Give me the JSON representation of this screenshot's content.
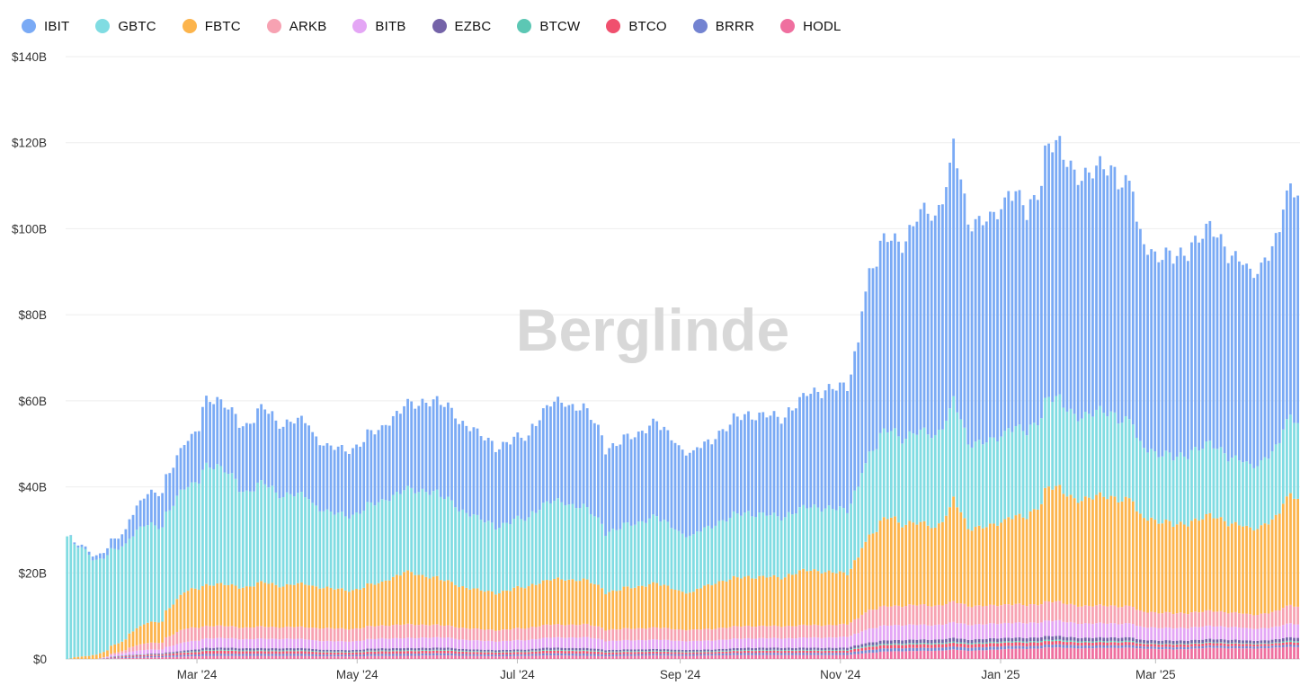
{
  "watermark": "Berglinde",
  "legend": [
    {
      "name": "IBIT",
      "color": "#7aaaf5"
    },
    {
      "name": "GBTC",
      "color": "#80dce2"
    },
    {
      "name": "FBTC",
      "color": "#fcb44c"
    },
    {
      "name": "ARKB",
      "color": "#f7a2b2"
    },
    {
      "name": "BITB",
      "color": "#e4a6f5"
    },
    {
      "name": "EZBC",
      "color": "#7463a8"
    },
    {
      "name": "BTCW",
      "color": "#5cc7b4"
    },
    {
      "name": "BTCO",
      "color": "#f0506e"
    },
    {
      "name": "BRRR",
      "color": "#7383d1"
    },
    {
      "name": "HODL",
      "color": "#ef6f9f"
    }
  ],
  "chart_data": {
    "type": "bar",
    "stacked": true,
    "grid": true,
    "legend_position": "top-left",
    "y_ticks": [
      "$0",
      "$20B",
      "$40B",
      "$60B",
      "$80B",
      "$100B",
      "$120B",
      "$140B"
    ],
    "ylim": [
      0,
      140
    ],
    "y_unit": "B",
    "x_ticks": [
      "Mar '24",
      "May '24",
      "Jul '24",
      "Sep '24",
      "Nov '24",
      "Jan '25",
      "Mar '25"
    ],
    "x_tick_dates": [
      "2024-03-01",
      "2024-05-01",
      "2024-07-01",
      "2024-09-01",
      "2024-11-01",
      "2025-01-01",
      "2025-03-01"
    ],
    "date_range": [
      "2024-01-11",
      "2025-04-25"
    ],
    "weekday_bars": true,
    "series_order": [
      "HODL",
      "BRRR",
      "BTCO",
      "BTCW",
      "EZBC",
      "BITB",
      "ARKB",
      "FBTC",
      "GBTC",
      "IBIT"
    ],
    "anchors": {
      "dates": [
        "2024-01-11",
        "2024-01-16",
        "2024-01-23",
        "2024-02-01",
        "2024-02-09",
        "2024-02-16",
        "2024-02-23",
        "2024-02-28",
        "2024-03-05",
        "2024-03-13",
        "2024-03-20",
        "2024-03-27",
        "2024-04-03",
        "2024-04-12",
        "2024-04-19",
        "2024-04-30",
        "2024-05-10",
        "2024-05-20",
        "2024-05-28",
        "2024-06-05",
        "2024-06-14",
        "2024-06-24",
        "2024-07-05",
        "2024-07-12",
        "2024-07-19",
        "2024-07-29",
        "2024-08-05",
        "2024-08-12",
        "2024-08-23",
        "2024-09-06",
        "2024-09-13",
        "2024-09-27",
        "2024-10-10",
        "2024-10-18",
        "2024-10-29",
        "2024-11-05",
        "2024-11-07",
        "2024-11-13",
        "2024-11-21",
        "2024-11-26",
        "2024-12-05",
        "2024-12-09",
        "2024-12-16",
        "2024-12-20",
        "2024-12-30",
        "2025-01-06",
        "2025-01-13",
        "2025-01-21",
        "2025-01-30",
        "2025-02-07",
        "2025-02-14",
        "2025-02-21",
        "2025-02-25",
        "2025-02-28",
        "2025-03-10",
        "2025-03-17",
        "2025-03-24",
        "2025-03-31",
        "2025-04-08",
        "2025-04-17",
        "2025-04-23",
        "2025-04-25"
      ],
      "total": [
        28.5,
        26.5,
        24.0,
        28.0,
        37.0,
        37.5,
        47.0,
        50.0,
        59.5,
        57.0,
        53.0,
        57.5,
        54.0,
        55.5,
        49.0,
        49.0,
        55.0,
        60.0,
        61.5,
        59.5,
        54.5,
        51.0,
        53.5,
        59.0,
        61.0,
        58.0,
        50.0,
        52.0,
        56.0,
        48.0,
        52.0,
        58.0,
        56.5,
        61.0,
        64.0,
        63.0,
        70.5,
        89.0,
        98.0,
        96.0,
        104.0,
        102.0,
        118.0,
        102.0,
        100.0,
        110.0,
        102.0,
        121.0,
        114.0,
        114.0,
        115.0,
        110.5,
        98.0,
        96.0,
        93.0,
        97.5,
        100.0,
        95.0,
        89.5,
        97.0,
        109.0,
        110.0
      ],
      "IBIT": [
        0.0,
        0.5,
        1.0,
        2.8,
        6.5,
        8.0,
        9.5,
        11.0,
        15.5,
        15.0,
        15.5,
        17.5,
        16.5,
        17.5,
        15.0,
        15.5,
        17.0,
        19.5,
        21.0,
        21.5,
        20.0,
        18.5,
        19.0,
        22.0,
        23.5,
        22.5,
        19.5,
        20.0,
        22.0,
        19.0,
        20.0,
        23.0,
        23.0,
        25.5,
        28.0,
        28.5,
        32.0,
        42.0,
        45.0,
        45.5,
        52.0,
        51.0,
        59.0,
        52.0,
        51.0,
        56.0,
        50.0,
        59.5,
        56.5,
        56.0,
        57.0,
        54.5,
        48.0,
        46.5,
        46.0,
        48.5,
        50.0,
        47.5,
        44.5,
        48.0,
        53.0,
        54.0
      ],
      "GBTC": [
        28.5,
        25.5,
        22.0,
        22.0,
        23.0,
        22.0,
        24.0,
        24.0,
        28.0,
        26.0,
        22.0,
        23.0,
        21.0,
        20.5,
        17.5,
        17.5,
        19.0,
        19.0,
        20.0,
        19.0,
        17.0,
        15.5,
        16.0,
        18.0,
        18.0,
        16.5,
        14.0,
        14.5,
        15.5,
        13.0,
        13.5,
        15.0,
        14.0,
        14.5,
        15.0,
        14.5,
        16.0,
        19.0,
        20.5,
        20.0,
        21.5,
        21.5,
        23.0,
        20.0,
        19.5,
        21.0,
        19.5,
        21.0,
        19.5,
        19.5,
        19.5,
        18.0,
        16.5,
        16.0,
        15.5,
        16.5,
        16.5,
        15.5,
        14.5,
        16.0,
        18.0,
        18.0
      ],
      "FBTC": [
        0.0,
        0.5,
        1.0,
        2.2,
        4.5,
        4.9,
        8.0,
        8.9,
        9.6,
        9.6,
        9.4,
        10.3,
        9.6,
        10.1,
        9.3,
        9.0,
        10.0,
        12.2,
        11.3,
        10.3,
        9.2,
        8.7,
        9.7,
        10.2,
        10.7,
        10.1,
        8.7,
        9.4,
        10.3,
        8.5,
        10.5,
        11.5,
        11.3,
        12.7,
        12.5,
        11.5,
        13.6,
        17.2,
        21.0,
        19.0,
        18.9,
        18.1,
        23.9,
        18.3,
        18.3,
        20.6,
        20.2,
        27.0,
        24.7,
        25.3,
        25.3,
        24.7,
        21.9,
        21.9,
        20.4,
        21.4,
        22.1,
        20.9,
        19.8,
        21.7,
        25.6,
        25.6
      ],
      "ARKB": [
        0.0,
        0.0,
        0.0,
        0.5,
        1.5,
        1.6,
        3.0,
        3.1,
        2.9,
        2.8,
        2.7,
        2.8,
        2.7,
        2.8,
        3.0,
        2.9,
        3.0,
        3.2,
        3.0,
        2.8,
        2.7,
        2.6,
        2.8,
        3.0,
        3.0,
        3.0,
        2.6,
        2.7,
        2.8,
        2.6,
        2.7,
        2.9,
        2.8,
        2.9,
        2.9,
        2.9,
        3.3,
        4.3,
        4.5,
        4.5,
        4.6,
        4.5,
        4.8,
        4.4,
        4.2,
        4.4,
        4.1,
        4.5,
        4.1,
        4.1,
        4.1,
        4.0,
        3.6,
        3.6,
        3.4,
        3.5,
        3.5,
        3.4,
        3.2,
        3.6,
        4.2,
        4.2
      ],
      "BITB": [
        0.0,
        0.0,
        0.0,
        0.5,
        1.0,
        0.9,
        1.8,
        2.0,
        2.2,
        2.2,
        2.1,
        2.2,
        2.2,
        2.1,
        2.0,
        2.0,
        2.3,
        2.3,
        2.4,
        2.3,
        2.1,
        2.0,
        2.2,
        2.3,
        2.4,
        2.5,
        2.1,
        2.1,
        2.2,
        2.0,
        2.1,
        2.2,
        2.2,
        2.3,
        2.4,
        2.5,
        2.7,
        3.2,
        3.5,
        3.5,
        3.4,
        3.4,
        3.6,
        3.5,
        3.4,
        3.5,
        3.4,
        3.6,
        3.4,
        3.3,
        3.3,
        3.2,
        3.0,
        3.0,
        2.9,
        3.0,
        3.0,
        3.0,
        2.8,
        2.9,
        3.2,
        3.2
      ],
      "EZBC": [
        0.0,
        0.0,
        0.0,
        0.1,
        0.1,
        0.2,
        0.3,
        0.4,
        0.5,
        0.5,
        0.5,
        0.5,
        0.5,
        0.5,
        0.4,
        0.4,
        0.5,
        0.5,
        0.5,
        0.5,
        0.4,
        0.4,
        0.4,
        0.5,
        0.5,
        0.5,
        0.4,
        0.4,
        0.4,
        0.4,
        0.4,
        0.5,
        0.5,
        0.5,
        0.5,
        0.5,
        0.6,
        0.7,
        0.8,
        0.8,
        0.8,
        0.8,
        0.9,
        0.8,
        0.8,
        0.8,
        0.8,
        0.9,
        0.8,
        0.8,
        0.8,
        0.8,
        0.7,
        0.7,
        0.7,
        0.7,
        0.7,
        0.7,
        0.6,
        0.7,
        0.8,
        0.8
      ],
      "BTCW": [
        0.0,
        0.0,
        0.0,
        0.1,
        0.1,
        0.1,
        0.1,
        0.2,
        0.2,
        0.2,
        0.2,
        0.2,
        0.2,
        0.2,
        0.2,
        0.2,
        0.2,
        0.2,
        0.2,
        0.2,
        0.2,
        0.2,
        0.2,
        0.2,
        0.2,
        0.2,
        0.2,
        0.2,
        0.2,
        0.2,
        0.2,
        0.2,
        0.2,
        0.2,
        0.2,
        0.2,
        0.2,
        0.3,
        0.3,
        0.3,
        0.3,
        0.3,
        0.3,
        0.3,
        0.3,
        0.3,
        0.3,
        0.3,
        0.3,
        0.3,
        0.3,
        0.3,
        0.2,
        0.2,
        0.2,
        0.2,
        0.2,
        0.2,
        0.2,
        0.2,
        0.3,
        0.3
      ],
      "BTCO": [
        0.0,
        0.0,
        0.0,
        0.2,
        0.3,
        0.3,
        0.5,
        0.5,
        0.7,
        0.7,
        0.6,
        0.6,
        0.6,
        0.6,
        0.5,
        0.5,
        0.6,
        0.6,
        0.6,
        0.6,
        0.5,
        0.5,
        0.5,
        0.6,
        0.6,
        0.6,
        0.5,
        0.5,
        0.5,
        0.4,
        0.4,
        0.5,
        0.5,
        0.5,
        0.5,
        0.5,
        0.6,
        0.7,
        0.8,
        0.8,
        0.8,
        0.8,
        0.8,
        0.8,
        0.8,
        0.8,
        0.8,
        0.8,
        0.7,
        0.7,
        0.7,
        0.7,
        0.6,
        0.6,
        0.6,
        0.6,
        0.6,
        0.6,
        0.5,
        0.5,
        0.6,
        0.6
      ],
      "BRRR": [
        0.0,
        0.0,
        0.0,
        0.2,
        0.3,
        0.3,
        0.4,
        0.4,
        0.5,
        0.5,
        0.5,
        0.5,
        0.5,
        0.5,
        0.4,
        0.4,
        0.5,
        0.5,
        0.5,
        0.5,
        0.4,
        0.4,
        0.4,
        0.5,
        0.5,
        0.5,
        0.4,
        0.4,
        0.4,
        0.4,
        0.4,
        0.5,
        0.5,
        0.5,
        0.5,
        0.5,
        0.6,
        0.7,
        0.7,
        0.7,
        0.7,
        0.7,
        0.7,
        0.7,
        0.7,
        0.7,
        0.6,
        0.7,
        0.7,
        0.6,
        0.6,
        0.6,
        0.5,
        0.5,
        0.5,
        0.5,
        0.5,
        0.5,
        0.5,
        0.5,
        0.5,
        0.5
      ],
      "HODL": [
        0.0,
        0.0,
        0.0,
        0.2,
        0.3,
        0.4,
        0.5,
        0.6,
        0.7,
        0.7,
        0.7,
        0.7,
        0.7,
        0.7,
        0.6,
        0.6,
        0.7,
        0.7,
        0.8,
        0.8,
        0.7,
        0.6,
        0.7,
        0.8,
        0.8,
        0.7,
        0.6,
        0.7,
        0.8,
        0.7,
        0.8,
        0.9,
        0.9,
        0.9,
        0.9,
        0.9,
        1.1,
        1.4,
        1.8,
        1.8,
        1.9,
        1.9,
        2.2,
        1.9,
        2.1,
        2.4,
        2.3,
        2.7,
        2.5,
        2.5,
        2.6,
        2.6,
        2.4,
        2.4,
        2.2,
        2.4,
        2.6,
        2.5,
        2.4,
        2.6,
        2.8,
        2.8
      ]
    }
  }
}
